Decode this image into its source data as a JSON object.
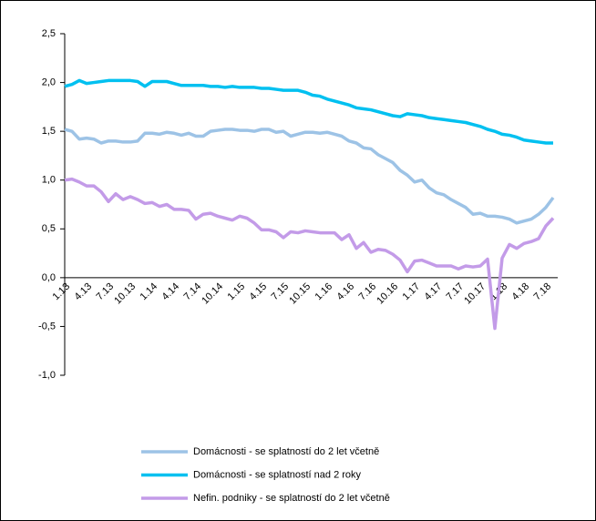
{
  "chart_data": {
    "type": "line",
    "categories": [
      "1.13",
      null,
      null,
      "4.13",
      null,
      null,
      "7.13",
      null,
      null,
      "10.13",
      null,
      null,
      "1.14",
      null,
      null,
      "4.14",
      null,
      null,
      "7.14",
      null,
      null,
      "10.14",
      null,
      null,
      "1.15",
      null,
      null,
      "4.15",
      null,
      null,
      "7.15",
      null,
      null,
      "10.15",
      null,
      null,
      "1.16",
      null,
      null,
      "4.16",
      null,
      null,
      "7.16",
      null,
      null,
      "10.16",
      null,
      null,
      "1.17",
      null,
      null,
      "4.17",
      null,
      null,
      "7.17",
      null,
      null,
      "10.17",
      null,
      null,
      "1.18",
      null,
      null,
      "4.18",
      null,
      null,
      "7.18",
      null
    ],
    "series": [
      {
        "name": "Domácnosti - se splatností do 2 let včetně",
        "color": "#9dc3e6",
        "values": [
          1.52,
          1.5,
          1.42,
          1.43,
          1.42,
          1.38,
          1.4,
          1.4,
          1.39,
          1.39,
          1.4,
          1.48,
          1.48,
          1.47,
          1.49,
          1.48,
          1.46,
          1.48,
          1.45,
          1.45,
          1.5,
          1.51,
          1.52,
          1.52,
          1.51,
          1.51,
          1.5,
          1.52,
          1.52,
          1.49,
          1.5,
          1.45,
          1.47,
          1.49,
          1.49,
          1.48,
          1.49,
          1.47,
          1.45,
          1.4,
          1.38,
          1.33,
          1.32,
          1.26,
          1.22,
          1.18,
          1.1,
          1.05,
          0.98,
          1.0,
          0.92,
          0.87,
          0.85,
          0.8,
          0.76,
          0.72,
          0.65,
          0.66,
          0.63,
          0.63,
          0.62,
          0.6,
          0.56,
          0.58,
          0.6,
          0.65,
          0.72,
          0.82
        ]
      },
      {
        "name": "Domácnosti - se splatností nad 2 roky",
        "color": "#00c0f0",
        "values": [
          1.96,
          1.98,
          2.02,
          1.99,
          2.0,
          2.01,
          2.02,
          2.02,
          2.02,
          2.02,
          2.01,
          1.96,
          2.01,
          2.01,
          2.01,
          1.99,
          1.97,
          1.97,
          1.97,
          1.97,
          1.96,
          1.96,
          1.95,
          1.96,
          1.95,
          1.95,
          1.95,
          1.94,
          1.94,
          1.93,
          1.92,
          1.92,
          1.92,
          1.9,
          1.87,
          1.86,
          1.83,
          1.81,
          1.79,
          1.77,
          1.74,
          1.73,
          1.72,
          1.7,
          1.68,
          1.66,
          1.65,
          1.68,
          1.67,
          1.66,
          1.64,
          1.63,
          1.62,
          1.61,
          1.6,
          1.59,
          1.57,
          1.55,
          1.52,
          1.5,
          1.47,
          1.46,
          1.44,
          1.41,
          1.4,
          1.39,
          1.38,
          1.38
        ]
      },
      {
        "name": "Nefin. podniky - se splatností do 2 let včetně",
        "color": "#c39be8",
        "values": [
          1.0,
          1.01,
          0.98,
          0.94,
          0.94,
          0.88,
          0.78,
          0.86,
          0.8,
          0.83,
          0.8,
          0.76,
          0.77,
          0.73,
          0.75,
          0.7,
          0.7,
          0.69,
          0.6,
          0.65,
          0.66,
          0.63,
          0.61,
          0.59,
          0.63,
          0.61,
          0.56,
          0.49,
          0.49,
          0.47,
          0.41,
          0.47,
          0.46,
          0.48,
          0.47,
          0.46,
          0.46,
          0.46,
          0.39,
          0.44,
          0.3,
          0.36,
          0.26,
          0.29,
          0.28,
          0.24,
          0.18,
          0.06,
          0.17,
          0.18,
          0.15,
          0.12,
          0.12,
          0.12,
          0.09,
          0.12,
          0.11,
          0.12,
          0.19,
          -0.52,
          0.2,
          0.34,
          0.3,
          0.35,
          0.37,
          0.4,
          0.53,
          0.61
        ]
      }
    ],
    "ylim": [
      -1,
      2.5
    ],
    "yticks": [
      {
        "value": -1,
        "label": "-1,0"
      },
      {
        "value": -0.5,
        "label": "-0,5"
      },
      {
        "value": 0,
        "label": "0,0"
      },
      {
        "value": 0.5,
        "label": "0,5"
      },
      {
        "value": 1,
        "label": "1,0"
      },
      {
        "value": 1.5,
        "label": "1,5"
      },
      {
        "value": 2,
        "label": "2,0"
      },
      {
        "value": 2.5,
        "label": "2,5"
      }
    ],
    "grid": false
  }
}
